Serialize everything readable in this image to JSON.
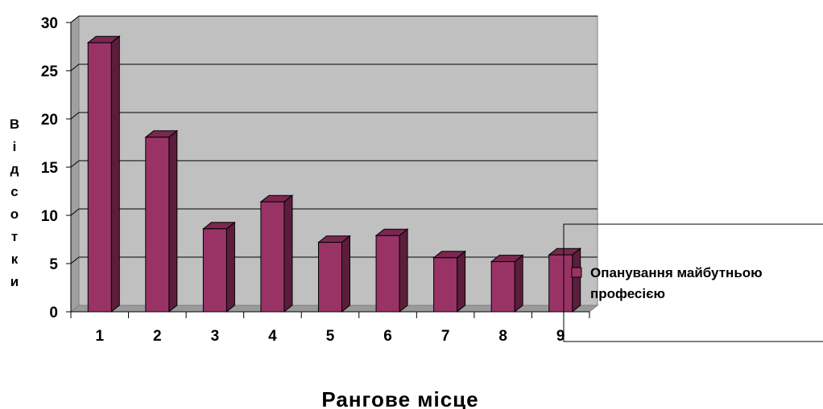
{
  "chart_data": {
    "type": "bar",
    "categories": [
      "1",
      "2",
      "3",
      "4",
      "5",
      "6",
      "7",
      "8",
      "9"
    ],
    "series": [
      {
        "name": "Опанування майбутньою професією",
        "values": [
          27.9,
          18.1,
          8.6,
          11.4,
          7.2,
          7.9,
          5.6,
          5.2,
          5.9
        ]
      }
    ],
    "ylim": [
      0,
      30
    ],
    "yticks": [
      "0",
      "5",
      "10",
      "15",
      "20",
      "25",
      "30"
    ],
    "xlabel": "Рангове місце",
    "ylabel_letters": [
      "В",
      "і",
      "д",
      "с",
      "о",
      "т",
      "к",
      "и"
    ],
    "legend": {
      "placement": "right",
      "line1": "Опанування майбутньою",
      "line2": "професією"
    },
    "grid": true,
    "style": "3d-column",
    "colors": {
      "bar_front": "#993366",
      "bar_side": "#5c1d3c",
      "bar_top": "#7a2850",
      "wall": "#c0c0c0",
      "gridline": "#000000"
    }
  }
}
